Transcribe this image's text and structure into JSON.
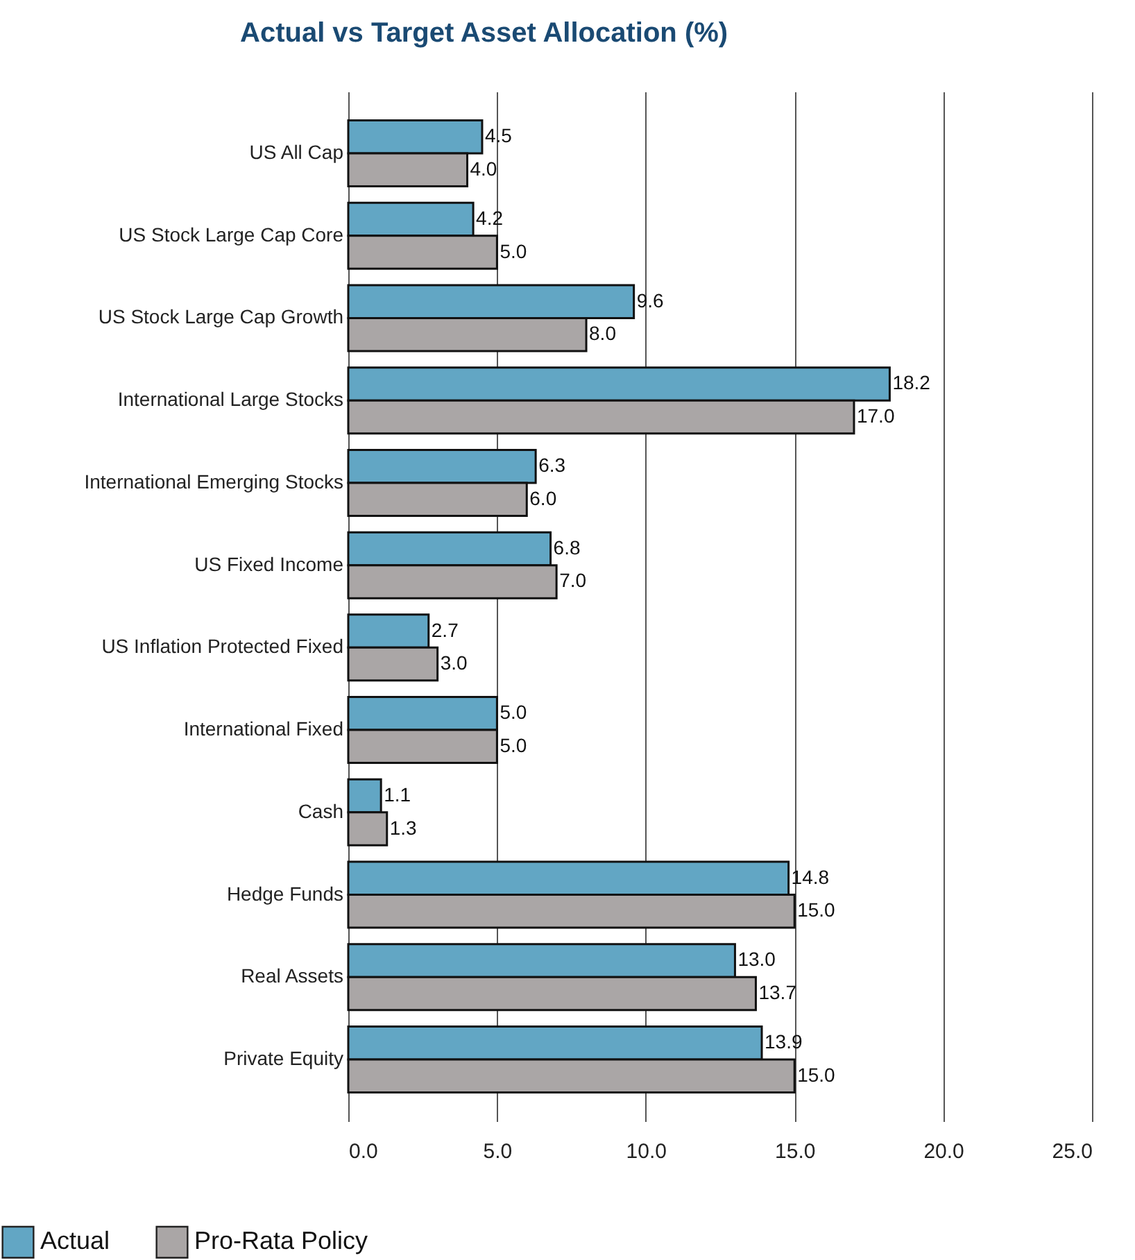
{
  "chart_data": {
    "type": "bar",
    "orientation": "horizontal",
    "title": "Actual vs Target Asset Allocation (%)",
    "categories": [
      "US All Cap",
      "US Stock Large Cap Core",
      "US Stock Large Cap Growth",
      "International Large Stocks",
      "International Emerging Stocks",
      "US Fixed Income",
      "US Inflation Protected Fixed",
      "International Fixed",
      "Cash",
      "Hedge Funds",
      "Real Assets",
      "Private Equity"
    ],
    "series": [
      {
        "name": "Actual",
        "color": "#62a6c4",
        "values": [
          4.5,
          4.2,
          9.6,
          18.2,
          6.3,
          6.8,
          2.7,
          5.0,
          1.1,
          14.8,
          13.0,
          13.9
        ],
        "value_labels": [
          "4.5",
          "4.2",
          "9.6",
          "18.2",
          "6.3",
          "6.8",
          "2.7",
          "5.0",
          "1.1",
          "14.8",
          "13.0",
          "13.9"
        ]
      },
      {
        "name": "Pro-Rata Policy",
        "color": "#aaa6a6",
        "values": [
          4.0,
          5.0,
          8.0,
          17.0,
          6.0,
          7.0,
          3.0,
          5.0,
          1.3,
          15.0,
          13.7,
          15.0
        ],
        "value_labels": [
          "4.0",
          "5.0",
          "8.0",
          "17.0",
          "6.0",
          "7.0",
          "3.0",
          "5.0",
          "1.3",
          "15.0",
          "13.7",
          "15.0"
        ]
      }
    ],
    "xlim": [
      0,
      25
    ],
    "xticks": [
      {
        "value": 0,
        "label": "0.0"
      },
      {
        "value": 5,
        "label": "5.0"
      },
      {
        "value": 10,
        "label": "10.0"
      },
      {
        "value": 15,
        "label": "15.0"
      },
      {
        "value": 20,
        "label": "20.0"
      },
      {
        "value": 25,
        "label": "25.0"
      }
    ],
    "grid": "x",
    "legend": "bottom left"
  }
}
